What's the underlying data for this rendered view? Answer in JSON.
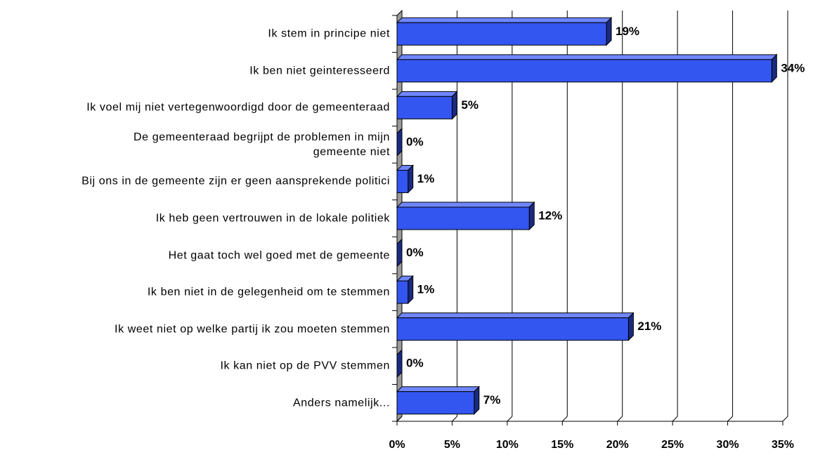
{
  "chart_data": {
    "type": "bar",
    "orientation": "horizontal",
    "categories": [
      "Ik stem in principe niet",
      "Ik ben niet geinteresseerd",
      "Ik voel mij niet vertegenwoordigd door de gemeenteraad",
      "De gemeenteraad begrijpt de problemen in mijn\ngemeente niet",
      "Bij ons in de gemeente zijn er geen aansprekende politici",
      "Ik heb geen vertrouwen in de lokale politiek",
      "Het gaat toch wel goed met de gemeente",
      "Ik ben niet in de gelegenheid om te stemmen",
      "Ik weet niet op welke partij ik zou moeten stemmen",
      "Ik kan niet op de PVV stemmen",
      "Anders namelijk..."
    ],
    "values": [
      19,
      34,
      5,
      0,
      1,
      12,
      0,
      1,
      21,
      0,
      7
    ],
    "value_labels": [
      "19%",
      "34%",
      "5%",
      "0%",
      "1%",
      "12%",
      "0%",
      "1%",
      "21%",
      "0%",
      "7%"
    ],
    "color": "#3355f0",
    "xlim": [
      0,
      35
    ],
    "xticks": [
      {
        "value": 0,
        "label": "0%"
      },
      {
        "value": 5,
        "label": "5%"
      },
      {
        "value": 10,
        "label": "10%"
      },
      {
        "value": 15,
        "label": "15%"
      },
      {
        "value": 20,
        "label": "20%"
      },
      {
        "value": 25,
        "label": "25%"
      },
      {
        "value": 30,
        "label": "30%"
      },
      {
        "value": 35,
        "label": "35%"
      }
    ],
    "grid": true
  }
}
